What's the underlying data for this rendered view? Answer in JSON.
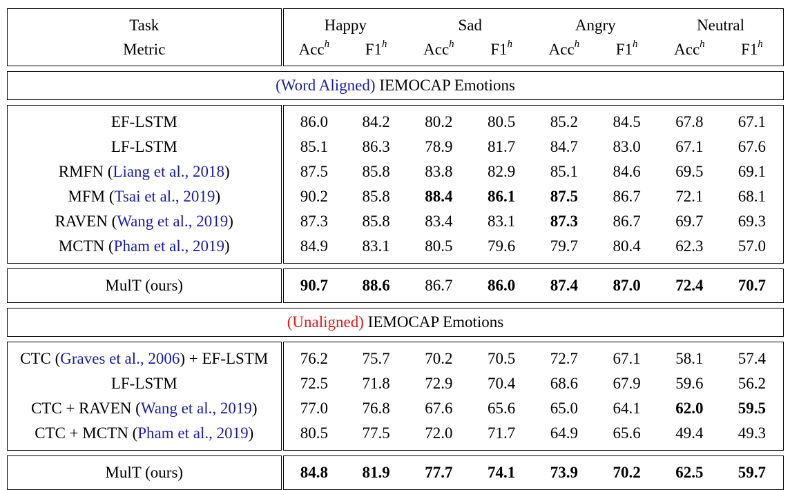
{
  "header": {
    "row1_label": "Task",
    "row2_label": "Metric",
    "tasks": [
      "Happy",
      "Sad",
      "Angry",
      "Neutral"
    ],
    "metric_acc": "Acc",
    "metric_f1": "F1",
    "metric_sup": "h"
  },
  "section1": {
    "prefix": "(Word Aligned)",
    "suffix": " IEMOCAP Emotions",
    "prefix_color": "#1a1aa6",
    "rows": [
      {
        "name": "EF-LSTM",
        "cite": "",
        "values": [
          "86.0",
          "84.2",
          "80.2",
          "80.5",
          "85.2",
          "84.5",
          "67.8",
          "67.1"
        ],
        "bold": []
      },
      {
        "name": "LF-LSTM",
        "cite": "",
        "values": [
          "85.1",
          "86.3",
          "78.9",
          "81.7",
          "84.7",
          "83.0",
          "67.1",
          "67.6"
        ],
        "bold": []
      },
      {
        "name": "RMFN (",
        "cite": "Liang et al., 2018",
        "close": ")",
        "values": [
          "87.5",
          "85.8",
          "83.8",
          "82.9",
          "85.1",
          "84.6",
          "69.5",
          "69.1"
        ],
        "bold": []
      },
      {
        "name": "MFM (",
        "cite": "Tsai et al., 2019",
        "close": ")",
        "values": [
          "90.2",
          "85.8",
          "88.4",
          "86.1",
          "87.5",
          "86.7",
          "72.1",
          "68.1"
        ],
        "bold": [
          2,
          3,
          4
        ]
      },
      {
        "name": "RAVEN (",
        "cite": "Wang et al., 2019",
        "close": ")",
        "values": [
          "87.3",
          "85.8",
          "83.4",
          "83.1",
          "87.3",
          "86.7",
          "69.7",
          "69.3"
        ],
        "bold": [
          4
        ]
      },
      {
        "name": "MCTN (",
        "cite": "Pham et al., 2019",
        "close": ")",
        "values": [
          "84.9",
          "83.1",
          "80.5",
          "79.6",
          "79.7",
          "80.4",
          "62.3",
          "57.0"
        ],
        "bold": []
      }
    ],
    "ours": {
      "name": "MulT (ours)",
      "values": [
        "90.7",
        "88.6",
        "86.7",
        "86.0",
        "87.4",
        "87.0",
        "72.4",
        "70.7"
      ],
      "bold": [
        0,
        1,
        3,
        4,
        5,
        6,
        7
      ]
    }
  },
  "section2": {
    "prefix": "(Unaligned)",
    "suffix": " IEMOCAP Emotions",
    "prefix_color": "#e0191a",
    "rows": [
      {
        "name": "CTC (",
        "cite": "Graves et al., 2006",
        "close": ") + EF-LSTM",
        "values": [
          "76.2",
          "75.7",
          "70.2",
          "70.5",
          "72.7",
          "67.1",
          "58.1",
          "57.4"
        ],
        "bold": []
      },
      {
        "name": "LF-LSTM",
        "cite": "",
        "values": [
          "72.5",
          "71.8",
          "72.9",
          "70.4",
          "68.6",
          "67.9",
          "59.6",
          "56.2"
        ],
        "bold": []
      },
      {
        "name": "CTC + RAVEN (",
        "cite": "Wang et al., 2019",
        "close": ")",
        "values": [
          "77.0",
          "76.8",
          "67.6",
          "65.6",
          "65.0",
          "64.1",
          "62.0",
          "59.5"
        ],
        "bold": [
          6,
          7
        ]
      },
      {
        "name": "CTC + MCTN (",
        "cite": "Pham et al., 2019",
        "close": ")",
        "values": [
          "80.5",
          "77.5",
          "72.0",
          "71.7",
          "64.9",
          "65.6",
          "49.4",
          "49.3"
        ],
        "bold": []
      }
    ],
    "ours": {
      "name": "MulT (ours)",
      "values": [
        "84.8",
        "81.9",
        "77.7",
        "74.1",
        "73.9",
        "70.2",
        "62.5",
        "59.7"
      ],
      "bold": [
        0,
        1,
        2,
        3,
        4,
        5,
        6,
        7
      ]
    }
  }
}
